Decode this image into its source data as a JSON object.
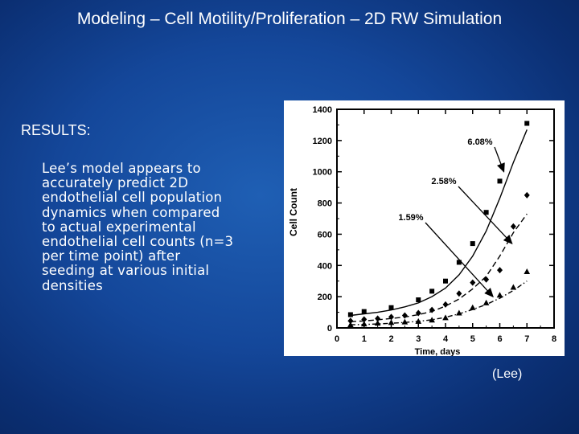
{
  "slide": {
    "title": "Modeling – Cell Motility/Proliferation – 2D RW Simulation",
    "results_heading": "RESULTS:",
    "body_lines": [
      "Lee’s model appears to",
      "accurately predict 2D",
      "endothelial cell population",
      "dynamics when compared",
      "to actual experimental",
      "endothelial cell counts (n=3",
      "per time point) after",
      "seeding at various initial",
      "densities"
    ],
    "source": "(Lee)"
  },
  "chart_data": {
    "type": "scatter",
    "xlabel": "Time,  days",
    "ylabel": "Cell Count",
    "xlim": [
      0,
      8
    ],
    "ylim": [
      0,
      1400
    ],
    "xticks": [
      0,
      1,
      2,
      3,
      4,
      5,
      6,
      7,
      8
    ],
    "yticks": [
      0,
      200,
      400,
      600,
      800,
      1000,
      1200,
      1400
    ],
    "series": [
      {
        "name": "6.08%",
        "marker": "square",
        "line_style": "solid",
        "points": [
          [
            0.5,
            85
          ],
          [
            1,
            105
          ],
          [
            2,
            130
          ],
          [
            3,
            180
          ],
          [
            3.5,
            235
          ],
          [
            4,
            300
          ],
          [
            4.5,
            420
          ],
          [
            5,
            540
          ],
          [
            5.5,
            740
          ],
          [
            6,
            940
          ],
          [
            7,
            1310
          ]
        ],
        "curve": [
          [
            0.5,
            80
          ],
          [
            1,
            90
          ],
          [
            1.5,
            100
          ],
          [
            2,
            115
          ],
          [
            2.5,
            135
          ],
          [
            3,
            160
          ],
          [
            3.5,
            200
          ],
          [
            4,
            255
          ],
          [
            4.5,
            340
          ],
          [
            5,
            460
          ],
          [
            5.5,
            620
          ],
          [
            6,
            830
          ],
          [
            6.5,
            1060
          ],
          [
            7,
            1270
          ]
        ]
      },
      {
        "name": "2.58%",
        "marker": "diamond",
        "line_style": "dashed",
        "points": [
          [
            0.5,
            45
          ],
          [
            1,
            55
          ],
          [
            1.5,
            60
          ],
          [
            2,
            70
          ],
          [
            2.5,
            80
          ],
          [
            3,
            95
          ],
          [
            3.5,
            115
          ],
          [
            4,
            150
          ],
          [
            4.5,
            220
          ],
          [
            5,
            290
          ],
          [
            5.5,
            310
          ],
          [
            6,
            370
          ],
          [
            6.5,
            650
          ],
          [
            7,
            850
          ]
        ],
        "curve": [
          [
            0.5,
            40
          ],
          [
            1,
            45
          ],
          [
            1.5,
            52
          ],
          [
            2,
            60
          ],
          [
            2.5,
            70
          ],
          [
            3,
            85
          ],
          [
            3.5,
            105
          ],
          [
            4,
            140
          ],
          [
            4.5,
            185
          ],
          [
            5,
            250
          ],
          [
            5.5,
            330
          ],
          [
            6,
            460
          ],
          [
            6.5,
            610
          ],
          [
            7,
            730
          ]
        ]
      },
      {
        "name": "1.59%",
        "marker": "triangle",
        "line_style": "dash-dot",
        "points": [
          [
            0.5,
            20
          ],
          [
            1,
            25
          ],
          [
            1.5,
            30
          ],
          [
            2,
            35
          ],
          [
            2.5,
            38
          ],
          [
            3,
            42
          ],
          [
            3.5,
            50
          ],
          [
            4,
            65
          ],
          [
            4.5,
            95
          ],
          [
            5,
            130
          ],
          [
            5.5,
            160
          ],
          [
            6,
            210
          ],
          [
            6.5,
            260
          ],
          [
            7,
            360
          ]
        ],
        "curve": [
          [
            0.5,
            20
          ],
          [
            1,
            22
          ],
          [
            1.5,
            25
          ],
          [
            2,
            30
          ],
          [
            2.5,
            35
          ],
          [
            3,
            42
          ],
          [
            3.5,
            52
          ],
          [
            4,
            68
          ],
          [
            4.5,
            90
          ],
          [
            5,
            118
          ],
          [
            5.5,
            150
          ],
          [
            6,
            190
          ],
          [
            6.5,
            240
          ],
          [
            7,
            300
          ]
        ]
      }
    ],
    "annotations": [
      {
        "text": "6.08%",
        "arrow_to": [
          6.15,
          1000
        ]
      },
      {
        "text": "2.58%",
        "arrow_to": [
          6.45,
          540
        ]
      },
      {
        "text": "1.59%",
        "arrow_to": [
          5.75,
          200
        ]
      }
    ],
    "grid": false,
    "colors": {
      "ink": "#000000",
      "background": "#ffffff"
    }
  }
}
